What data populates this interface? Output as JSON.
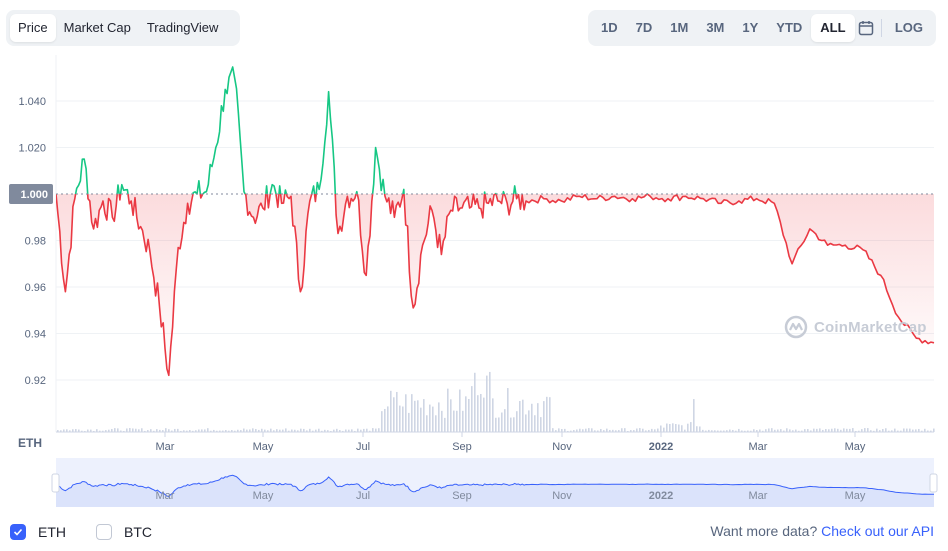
{
  "tabs": [
    {
      "label": "Price",
      "active": true
    },
    {
      "label": "Market Cap",
      "active": false
    },
    {
      "label": "TradingView",
      "active": false
    }
  ],
  "ranges": [
    {
      "label": "1D",
      "active": false
    },
    {
      "label": "7D",
      "active": false
    },
    {
      "label": "1M",
      "active": false
    },
    {
      "label": "3M",
      "active": false
    },
    {
      "label": "1Y",
      "active": false
    },
    {
      "label": "YTD",
      "active": false
    },
    {
      "label": "ALL",
      "active": true
    }
  ],
  "calendar_icon": "calendar-icon",
  "log_label": "LOG",
  "watermark": "CoinMarketCap",
  "watermark_icon": "coinmarketcap-logo-icon",
  "legend": {
    "eth": {
      "label": "ETH",
      "checked": true
    },
    "btc": {
      "label": "BTC",
      "checked": false
    }
  },
  "api_text": "Want more data?",
  "api_link": "Check out our API",
  "colors": {
    "up": "#16c784",
    "down": "#ea3943",
    "accent": "#3861fb",
    "nav_line": "#3861fb"
  },
  "chart_data": {
    "type": "line",
    "ylim": [
      0.9,
      1.05
    ],
    "yticks": [
      "1.040",
      "1.020",
      "1.000",
      "0.98",
      "0.96",
      "0.94",
      "0.92"
    ],
    "baseline": 1.0,
    "baseline_label": "1.000",
    "volume_axis_label": "ETH",
    "xticks": [
      "Mar",
      "May",
      "Jul",
      "Sep",
      "Nov",
      "2022",
      "Mar",
      "May"
    ],
    "navigator_xticks": [
      "Mar",
      "May",
      "Jul",
      "Sep",
      "Nov",
      "2022",
      "Mar",
      "May"
    ],
    "x_index": [
      0,
      20,
      40,
      60,
      80,
      100,
      120,
      140,
      160,
      180,
      200,
      220,
      240,
      260,
      280,
      300,
      320,
      340,
      360,
      380,
      400,
      420,
      440,
      460,
      480,
      500,
      520,
      540,
      560,
      580,
      600,
      620,
      640,
      660,
      680,
      700,
      720,
      740,
      760,
      780,
      800,
      820,
      840,
      860,
      880,
      900,
      920,
      940,
      960,
      980,
      1000
    ],
    "series": [
      {
        "values": [
          1.0,
          0.958,
          0.998,
          1.015,
          0.985,
          0.997,
          0.99,
          1.004,
          0.997,
          0.986,
          0.975,
          0.952,
          0.922,
          0.977,
          0.996,
          1.0,
          1.001,
          1.02,
          1.045,
          1.05,
          1.001,
          0.99,
          0.994,
          1.004,
          0.996,
          0.999,
          0.958,
          0.997,
          1.002,
          1.044,
          0.983,
          0.999,
          1.001,
          0.965,
          1.02,
          0.999,
          0.99,
          1.002,
          0.951,
          0.978,
          0.993,
          0.974,
          0.993,
          0.994,
          0.994,
          0.994,
          0.996,
          0.997,
          0.996,
          0.998,
          0.997
        ]
      },
      {
        "values": [
          0.997,
          0.998,
          0.997,
          0.999,
          0.998,
          0.999,
          0.998,
          0.999,
          0.998,
          0.999,
          0.998,
          0.996,
          0.997,
          0.998,
          0.996,
          0.97,
          0.985,
          0.978,
          0.978,
          0.976,
          0.965,
          0.947,
          0.938,
          0.936
        ]
      }
    ],
    "volume_note": "relative bars"
  }
}
